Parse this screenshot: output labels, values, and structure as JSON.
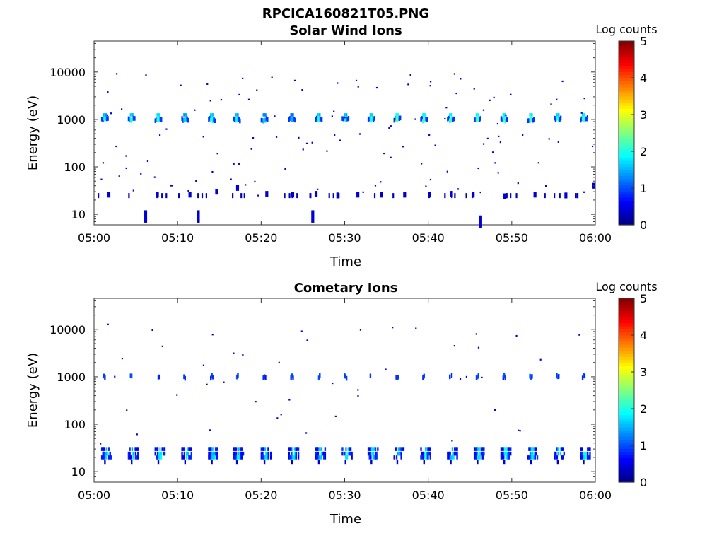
{
  "figure": {
    "suptitle": "RPCICA160821T05.PNG"
  },
  "chart_data": [
    {
      "type": "heatmap",
      "title": "Solar Wind Ions",
      "xlabel": "Time",
      "ylabel": "Energy (eV)",
      "x_ticks": [
        "05:00",
        "05:10",
        "05:20",
        "05:30",
        "05:40",
        "05:50",
        "06:00"
      ],
      "x_range_minutes": [
        0,
        60
      ],
      "y_scale": "log",
      "y_ticks": [
        10,
        100,
        1000,
        10000
      ],
      "y_tick_labels": [
        "10",
        "100",
        "1000",
        "10000"
      ],
      "ylim": [
        6,
        45000
      ],
      "colorbar": {
        "label": "Log counts",
        "ticks": [
          "0",
          "1",
          "2",
          "3",
          "4",
          "5"
        ],
        "range": [
          0,
          5
        ],
        "colormap": "jet"
      },
      "bursts_1keV": [
        {
          "t": 1.2,
          "level": 1.9
        },
        {
          "t": 4.4,
          "level": 2.0
        },
        {
          "t": 7.6,
          "level": 2.1
        },
        {
          "t": 10.8,
          "level": 1.8
        },
        {
          "t": 14.0,
          "level": 2.0
        },
        {
          "t": 17.0,
          "level": 1.9
        },
        {
          "t": 20.3,
          "level": 1.7
        },
        {
          "t": 23.6,
          "level": 1.6
        },
        {
          "t": 26.8,
          "level": 2.0
        },
        {
          "t": 30.0,
          "level": 1.9
        },
        {
          "t": 33.1,
          "level": 2.1
        },
        {
          "t": 36.2,
          "level": 2.4
        },
        {
          "t": 39.4,
          "level": 2.3
        },
        {
          "t": 42.6,
          "level": 2.2
        },
        {
          "t": 45.8,
          "level": 2.3
        },
        {
          "t": 49.0,
          "level": 2.2
        },
        {
          "t": 52.2,
          "level": 2.2
        },
        {
          "t": 55.4,
          "level": 2.1
        },
        {
          "t": 58.5,
          "level": 2.2
        }
      ],
      "low_energy_events": [
        {
          "t": 1.6,
          "e": 26
        },
        {
          "t": 7.4,
          "e": 26
        },
        {
          "t": 11.3,
          "e": 26
        },
        {
          "t": 14.5,
          "e": 30
        },
        {
          "t": 17.0,
          "e": 36
        },
        {
          "t": 20.5,
          "e": 27
        },
        {
          "t": 23.6,
          "e": 26
        },
        {
          "t": 26.4,
          "e": 27
        },
        {
          "t": 29.0,
          "e": 25
        },
        {
          "t": 31.4,
          "e": 26
        },
        {
          "t": 34.2,
          "e": 26
        },
        {
          "t": 37.0,
          "e": 26
        },
        {
          "t": 40.0,
          "e": 26
        },
        {
          "t": 42.6,
          "e": 27
        },
        {
          "t": 45.2,
          "e": 26
        },
        {
          "t": 49.0,
          "e": 24
        },
        {
          "t": 52.6,
          "e": 26
        },
        {
          "t": 56.3,
          "e": 25
        },
        {
          "t": 59.6,
          "e": 40
        },
        {
          "t": 6.0,
          "e": 9
        },
        {
          "t": 12.3,
          "e": 9
        },
        {
          "t": 26.0,
          "e": 9
        },
        {
          "t": 46.1,
          "e": 7
        }
      ]
    },
    {
      "type": "heatmap",
      "title": "Cometary Ions",
      "xlabel": "Time",
      "ylabel": "Energy (eV)",
      "x_ticks": [
        "05:00",
        "05:10",
        "05:20",
        "05:30",
        "05:40",
        "05:50",
        "06:00"
      ],
      "x_range_minutes": [
        0,
        60
      ],
      "y_scale": "log",
      "y_ticks": [
        10,
        100,
        1000,
        10000
      ],
      "y_tick_labels": [
        "10",
        "100",
        "1000",
        "10000"
      ],
      "ylim": [
        6,
        45000
      ],
      "colorbar": {
        "label": "Log counts",
        "ticks": [
          "0",
          "1",
          "2",
          "3",
          "4",
          "5"
        ],
        "range": [
          0,
          5
        ],
        "colormap": "jet"
      },
      "bursts_1keV": [
        {
          "t": 1.2,
          "level": 1.0
        },
        {
          "t": 4.4,
          "level": 1.0
        },
        {
          "t": 7.6,
          "level": 1.0
        },
        {
          "t": 10.8,
          "level": 1.0
        },
        {
          "t": 14.0,
          "level": 1.0
        },
        {
          "t": 17.0,
          "level": 1.0
        },
        {
          "t": 20.3,
          "level": 1.0
        },
        {
          "t": 23.6,
          "level": 1.0
        },
        {
          "t": 26.8,
          "level": 1.0
        },
        {
          "t": 30.0,
          "level": 1.0
        },
        {
          "t": 33.1,
          "level": 1.0
        },
        {
          "t": 36.2,
          "level": 1.0
        },
        {
          "t": 39.4,
          "level": 1.0
        },
        {
          "t": 42.6,
          "level": 1.0
        },
        {
          "t": 45.8,
          "level": 1.0
        },
        {
          "t": 49.0,
          "level": 1.0
        },
        {
          "t": 52.2,
          "level": 1.0
        },
        {
          "t": 55.4,
          "level": 1.0
        },
        {
          "t": 58.5,
          "level": 1.0
        }
      ],
      "low_energy_bands": [
        {
          "t": 1.4,
          "level": 1.7
        },
        {
          "t": 4.6,
          "level": 1.6
        },
        {
          "t": 7.8,
          "level": 1.8
        },
        {
          "t": 11.0,
          "level": 1.7
        },
        {
          "t": 14.2,
          "level": 1.6
        },
        {
          "t": 17.2,
          "level": 1.7
        },
        {
          "t": 20.5,
          "level": 1.6
        },
        {
          "t": 23.8,
          "level": 1.7
        },
        {
          "t": 27.0,
          "level": 1.6
        },
        {
          "t": 30.2,
          "level": 1.6
        },
        {
          "t": 33.3,
          "level": 1.7
        },
        {
          "t": 36.4,
          "level": 1.6
        },
        {
          "t": 39.6,
          "level": 1.6
        },
        {
          "t": 42.8,
          "level": 1.6
        },
        {
          "t": 46.0,
          "level": 1.7
        },
        {
          "t": 49.2,
          "level": 1.8
        },
        {
          "t": 52.4,
          "level": 1.8
        },
        {
          "t": 55.6,
          "level": 1.7
        },
        {
          "t": 58.7,
          "level": 1.8
        }
      ]
    }
  ]
}
